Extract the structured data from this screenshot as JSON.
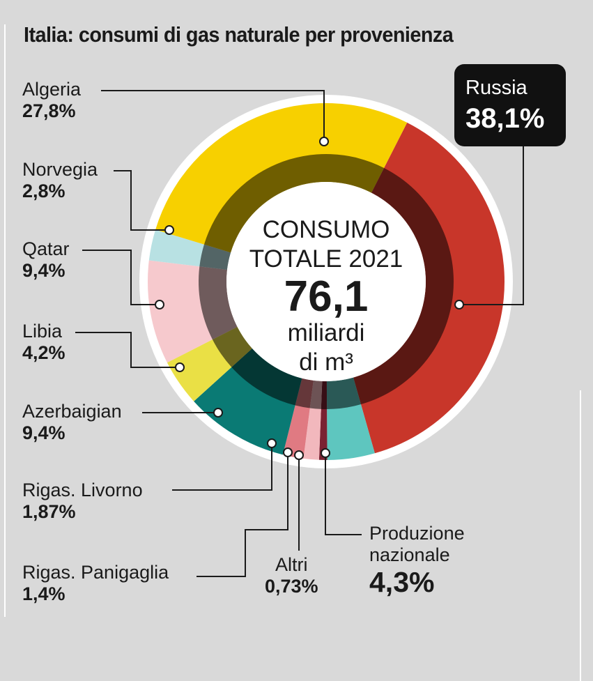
{
  "chart_data": {
    "type": "donut",
    "title": "Italia: consumi di gas naturale per provenienza",
    "center": {
      "line1": "CONSUMO",
      "line2": "TOTALE 2021",
      "value": "76,1",
      "unit1": "miliardi",
      "unit2": "di m³"
    },
    "slices": [
      {
        "name": "Russia",
        "label": "38,1%",
        "value": 38.1,
        "color": "#c8362a"
      },
      {
        "name": "Produzione nazionale",
        "label": "4,3%",
        "value": 4.3,
        "color": "#5ec6bf"
      },
      {
        "name": "Altri",
        "label": "0,73%",
        "value": 0.73,
        "color": "#7a2232"
      },
      {
        "name": "Rigas. Panigaglia",
        "label": "1,4%",
        "value": 1.4,
        "color": "#f2b8bd"
      },
      {
        "name": "Rigas. Livorno",
        "label": "1,87%",
        "value": 1.87,
        "color": "#e07a82"
      },
      {
        "name": "Azerbaigian",
        "label": "9,4%",
        "value": 9.4,
        "color": "#0a7a74"
      },
      {
        "name": "Libia",
        "label": "4,2%",
        "value": 4.2,
        "color": "#eae045"
      },
      {
        "name": "Qatar",
        "label": "9,4%",
        "value": 9.4,
        "color": "#f6c9cd"
      },
      {
        "name": "Norvegia",
        "label": "2,8%",
        "value": 2.8,
        "color": "#b8e1e3"
      },
      {
        "name": "Algeria",
        "label": "27,8%",
        "value": 27.8,
        "color": "#f7d000"
      }
    ]
  },
  "labels": {
    "algeria": {
      "name": "Algeria",
      "pct": "27,8%"
    },
    "norvegia": {
      "name": "Norvegia",
      "pct": "2,8%"
    },
    "qatar": {
      "name": "Qatar",
      "pct": "9,4%"
    },
    "libia": {
      "name": "Libia",
      "pct": "4,2%"
    },
    "azerbaigian": {
      "name": "Azerbaigian",
      "pct": "9,4%"
    },
    "livorno": {
      "name": "Rigas. Livorno",
      "pct": "1,87%"
    },
    "panigaglia": {
      "name": "Rigas. Panigaglia",
      "pct": "1,4%"
    },
    "altri": {
      "name": "Altri",
      "pct": "0,73%"
    },
    "produzione": {
      "name1": "Produzione",
      "name2": "nazionale",
      "pct": "4,3%"
    },
    "russia": {
      "name": "Russia",
      "pct": "38,1%"
    }
  }
}
